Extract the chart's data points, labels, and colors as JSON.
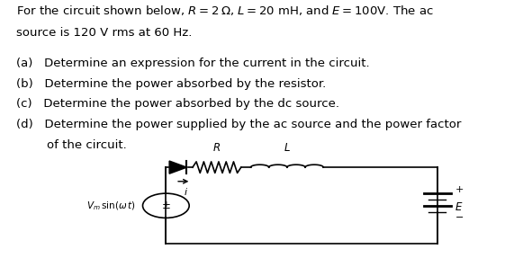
{
  "bg_color": "#ffffff",
  "text_color": "#000000",
  "font_size": 9.5,
  "title_line1": "For the circuit shown below, $R = 2\\,\\Omega$, $L = 20$ mH, and $E = 100$V. The ac",
  "title_line2": "source is 120 V rms at 60 Hz.",
  "items": [
    "(a)   Determine an expression for the current in the circuit.",
    "(b)   Determine the power absorbed by the resistor.",
    "(c)   Determine the power absorbed by the dc source.",
    "(d)   Determine the power supplied by the ac source and the power factor"
  ],
  "item_cont": "        of the circuit.",
  "circuit": {
    "cl": 0.34,
    "cr": 0.9,
    "cb": 0.05,
    "ct": 0.35
  }
}
